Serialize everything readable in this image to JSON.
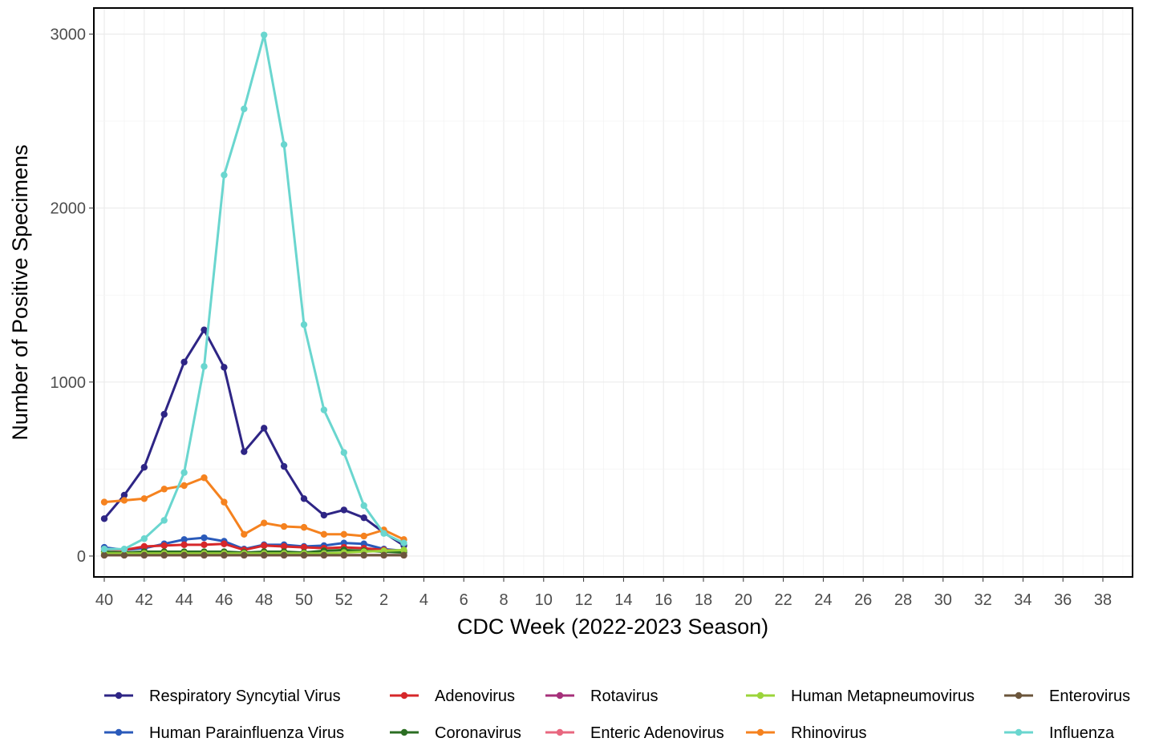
{
  "chart_data": {
    "type": "line",
    "title": "",
    "xlabel": "CDC Week (2022-2023 Season)",
    "ylabel": "Number of Positive Specimens",
    "x_tick_labels": [
      "40",
      "42",
      "44",
      "46",
      "48",
      "50",
      "52",
      "2",
      "4",
      "6",
      "8",
      "10",
      "12",
      "14",
      "16",
      "18",
      "20",
      "22",
      "24",
      "26",
      "28",
      "30",
      "32",
      "34",
      "36",
      "38"
    ],
    "y_ticks": [
      0,
      1000,
      2000,
      3000
    ],
    "ylim": [
      -120,
      3150
    ],
    "x_weeks": [
      "40",
      "41",
      "42",
      "43",
      "44",
      "45",
      "46",
      "47",
      "48",
      "49",
      "50",
      "51",
      "52",
      "1",
      "2",
      "3"
    ],
    "grid": true,
    "legend_position": "bottom",
    "series": [
      {
        "name": "Respiratory Syncytial Virus",
        "color": "#2e2585",
        "values": [
          215,
          350,
          510,
          815,
          1115,
          1300,
          1085,
          600,
          735,
          515,
          330,
          235,
          265,
          220,
          135,
          60
        ]
      },
      {
        "name": "Human Parainfluenza Virus",
        "color": "#2a5aba",
        "values": [
          50,
          35,
          45,
          70,
          95,
          105,
          85,
          40,
          65,
          65,
          55,
          60,
          75,
          70,
          40,
          30
        ]
      },
      {
        "name": "Adenovirus",
        "color": "#d6272a",
        "values": [
          40,
          35,
          55,
          60,
          65,
          65,
          70,
          35,
          60,
          55,
          50,
          45,
          50,
          45,
          35,
          30
        ]
      },
      {
        "name": "Coronavirus",
        "color": "#2b6e23",
        "values": [
          25,
          20,
          25,
          25,
          25,
          25,
          25,
          20,
          25,
          25,
          20,
          30,
          35,
          30,
          25,
          20
        ]
      },
      {
        "name": "Rotavirus",
        "color": "#a6307a",
        "values": [
          5,
          5,
          5,
          5,
          5,
          5,
          5,
          5,
          5,
          5,
          5,
          5,
          5,
          5,
          5,
          5
        ]
      },
      {
        "name": "Enteric Adenovirus",
        "color": "#e8677f",
        "values": [
          5,
          5,
          5,
          5,
          5,
          5,
          5,
          5,
          5,
          5,
          5,
          5,
          5,
          5,
          5,
          5
        ]
      },
      {
        "name": "Human Metapneumovirus",
        "color": "#9bd43a",
        "values": [
          15,
          15,
          15,
          15,
          15,
          15,
          15,
          15,
          15,
          15,
          15,
          15,
          20,
          25,
          30,
          35
        ]
      },
      {
        "name": "Rhinovirus",
        "color": "#f5821f",
        "values": [
          310,
          320,
          330,
          385,
          405,
          450,
          310,
          125,
          190,
          170,
          165,
          125,
          125,
          115,
          150,
          95
        ]
      },
      {
        "name": "Enterovirus",
        "color": "#6b553b",
        "values": [
          5,
          5,
          5,
          5,
          5,
          5,
          5,
          5,
          5,
          5,
          5,
          5,
          5,
          5,
          5,
          5
        ]
      },
      {
        "name": "Influenza",
        "color": "#6ad6cf",
        "values": [
          40,
          40,
          100,
          205,
          480,
          1090,
          2190,
          2570,
          2995,
          2365,
          1330,
          840,
          595,
          290,
          130,
          75
        ]
      }
    ]
  }
}
